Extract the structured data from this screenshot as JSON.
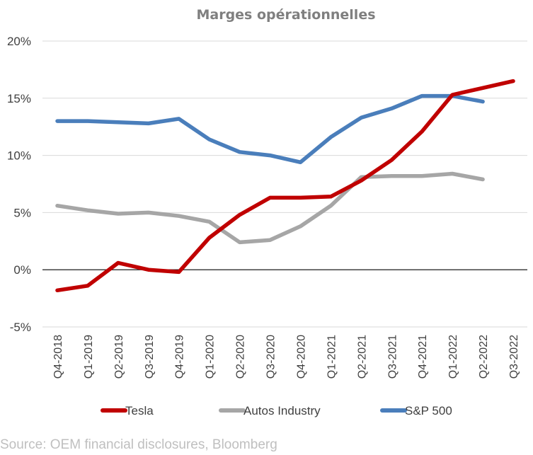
{
  "chart_data": {
    "type": "line",
    "title": "Marges opérationnelles",
    "categories": [
      "Q4-2018",
      "Q1-2019",
      "Q2-2019",
      "Q3-2019",
      "Q4-2019",
      "Q1-2020",
      "Q2-2020",
      "Q3-2020",
      "Q4-2020",
      "Q1-2021",
      "Q2-2021",
      "Q3-2021",
      "Q4-2021",
      "Q1-2022",
      "Q2-2022",
      "Q3-2022"
    ],
    "ylim": [
      -5,
      20
    ],
    "yticks": [
      -5,
      0,
      5,
      10,
      15,
      20
    ],
    "ytick_labels": [
      "-5%",
      "0%",
      "5%",
      "10%",
      "15%",
      "20%"
    ],
    "grid": true,
    "legend_position": "bottom",
    "series": [
      {
        "name": "Tesla",
        "color": "#c00000",
        "values": [
          -1.8,
          -1.4,
          0.6,
          0.0,
          -0.2,
          2.8,
          4.8,
          6.3,
          6.3,
          6.4,
          7.8,
          9.6,
          12.1,
          15.3,
          15.9,
          16.5
        ]
      },
      {
        "name": "Autos Industry",
        "color": "#a6a6a6",
        "values": [
          5.6,
          5.2,
          4.9,
          5.0,
          4.7,
          4.2,
          2.4,
          2.6,
          3.8,
          5.6,
          8.1,
          8.2,
          8.2,
          8.4,
          7.9,
          null
        ]
      },
      {
        "name": "S&P 500",
        "color": "#4a7ebb",
        "values": [
          13.0,
          13.0,
          12.9,
          12.8,
          13.2,
          11.4,
          10.3,
          10.0,
          9.4,
          11.6,
          13.3,
          14.1,
          15.2,
          15.2,
          14.7,
          null
        ]
      }
    ]
  },
  "source": "Source: OEM financial disclosures, Bloomberg"
}
